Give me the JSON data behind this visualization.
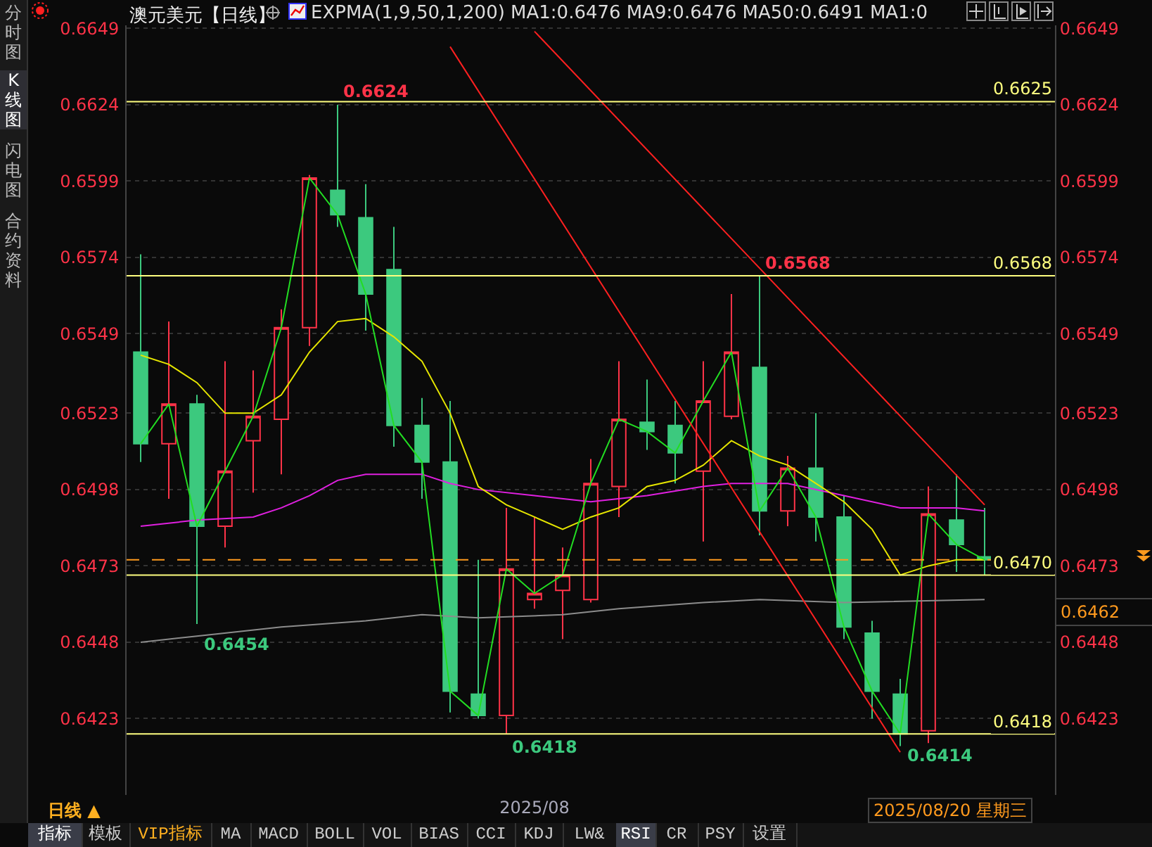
{
  "chart_data": {
    "type": "candlestick",
    "title": "澳元美元【日线】",
    "subtitle": "EXPMA(1,9,50,1,200) MA1:0.6476 MA9:0.6476 MA50:0.6491 MA1:0",
    "categories": [
      null,
      null,
      null,
      null,
      null,
      null,
      null,
      null,
      null,
      null,
      null,
      null,
      null,
      null,
      "2025/08",
      null,
      null,
      null,
      null,
      null,
      null,
      null,
      null,
      null,
      null,
      null,
      null,
      null,
      null,
      null,
      null
    ],
    "ohlc": [
      [
        0.6543,
        0.6575,
        0.6507,
        0.6513
      ],
      [
        0.6513,
        0.6553,
        0.6495,
        0.6526
      ],
      [
        0.6526,
        0.6529,
        0.6454,
        0.6486
      ],
      [
        0.6486,
        0.654,
        0.6479,
        0.6504
      ],
      [
        0.6514,
        0.6537,
        0.6497,
        0.6522
      ],
      [
        0.6521,
        0.6557,
        0.6503,
        0.6551
      ],
      [
        0.6551,
        0.6601,
        0.6545,
        0.66
      ],
      [
        0.6596,
        0.6624,
        0.6584,
        0.6588
      ],
      [
        0.6587,
        0.6598,
        0.655,
        0.6562
      ],
      [
        0.657,
        0.6584,
        0.6512,
        0.6519
      ],
      [
        0.6519,
        0.6528,
        0.6495,
        0.6507
      ],
      [
        0.6507,
        0.6527,
        0.6425,
        0.6432
      ],
      [
        0.6431,
        0.6475,
        0.6423,
        0.6424
      ],
      [
        0.6424,
        0.6492,
        0.6418,
        0.6472
      ],
      [
        0.6462,
        0.6489,
        0.6459,
        0.6464
      ],
      [
        0.6465,
        0.6479,
        0.6449,
        0.647
      ],
      [
        0.6462,
        0.6508,
        0.6461,
        0.65
      ],
      [
        0.6499,
        0.654,
        0.6489,
        0.6521
      ],
      [
        0.652,
        0.6534,
        0.6511,
        0.6517
      ],
      [
        0.6519,
        0.6527,
        0.65,
        0.651
      ],
      [
        0.6504,
        0.654,
        0.6481,
        0.6527
      ],
      [
        0.6522,
        0.6562,
        0.6521,
        0.6543
      ],
      [
        0.6538,
        0.6568,
        0.6483,
        0.6491
      ],
      [
        0.6491,
        0.6509,
        0.6486,
        0.6505
      ],
      [
        0.6505,
        0.6523,
        0.6481,
        0.6489
      ],
      [
        0.6489,
        0.6496,
        0.6449,
        0.6453
      ],
      [
        0.6451,
        0.6455,
        0.6423,
        0.6432
      ],
      [
        0.6431,
        0.6436,
        0.6414,
        0.6418
      ],
      [
        0.6419,
        0.6499,
        0.6415,
        0.649
      ],
      [
        0.6488,
        0.6503,
        0.6471,
        0.648
      ],
      [
        0.6476,
        0.6492,
        0.647,
        0.6475
      ]
    ],
    "colors": [
      "#3cc97e",
      "#ff3348",
      "#3cc97e",
      "#ff3348",
      "#ff3348",
      "#ff3348",
      "#ff3348",
      "#3cc97e",
      "#3cc97e",
      "#3cc97e",
      "#3cc97e",
      "#3cc97e",
      "#3cc97e",
      "#ff3348",
      "#ff3348",
      "#ff3348",
      "#ff3348",
      "#ff3348",
      "#3cc97e",
      "#3cc97e",
      "#ff3348",
      "#ff3348",
      "#3cc97e",
      "#ff3348",
      "#3cc97e",
      "#3cc97e",
      "#3cc97e",
      "#3cc97e",
      "#ff3348",
      "#3cc97e",
      "#3cc97e"
    ],
    "series": [
      {
        "type": "line",
        "color": "#8c8c8c",
        "values": [
          0.6448,
          null,
          0.645,
          null,
          null,
          0.6453,
          null,
          null,
          0.6455,
          null,
          0.6457,
          null,
          0.6456,
          null,
          null,
          0.6457,
          null,
          0.6459,
          null,
          null,
          0.6461,
          null,
          0.6462,
          null,
          null,
          0.6461,
          null,
          null,
          null,
          null,
          0.6462
        ]
      },
      {
        "type": "line",
        "color": "#e020e0",
        "values": [
          0.6486,
          null,
          0.6488,
          null,
          0.6489,
          0.6492,
          0.6496,
          0.6501,
          0.6503,
          0.6503,
          0.6503,
          0.65,
          0.6498,
          null,
          0.6496,
          null,
          0.6494,
          null,
          0.6496,
          null,
          0.6499,
          0.65,
          null,
          0.65,
          null,
          0.6496,
          null,
          0.6492,
          null,
          0.6492,
          0.6491
        ]
      },
      {
        "type": "line",
        "color": "#e6e600",
        "values": [
          0.6542,
          0.6539,
          0.6533,
          0.6523,
          0.6523,
          0.6529,
          0.6543,
          0.6553,
          0.6554,
          0.6548,
          0.654,
          0.6523,
          0.6499,
          0.6493,
          0.6489,
          0.6485,
          0.6489,
          0.6492,
          0.6499,
          0.6501,
          0.6506,
          0.6514,
          0.6509,
          0.6506,
          0.65,
          0.6494,
          0.6485,
          0.647,
          0.6473,
          0.6475,
          0.6475
        ]
      },
      {
        "type": "line",
        "color": "#22dd22",
        "values": [
          0.6513,
          0.6526,
          0.6486,
          0.6504,
          0.6522,
          0.6551,
          0.66,
          0.6588,
          0.6562,
          0.6519,
          0.6507,
          0.6432,
          0.6424,
          0.6472,
          0.6464,
          0.647,
          0.65,
          0.6521,
          0.6517,
          0.651,
          0.6527,
          0.6543,
          0.6491,
          0.6505,
          0.6489,
          0.6453,
          0.6432,
          0.6418,
          0.649,
          0.648,
          0.6475
        ]
      },
      {
        "type": "line",
        "color": "#ff2020",
        "values": [
          null,
          null,
          null,
          null,
          null,
          null,
          null,
          null,
          null,
          null,
          null,
          0.6643,
          null,
          null,
          null,
          null,
          null,
          null,
          null,
          null,
          null,
          null,
          null,
          null,
          null,
          null,
          null,
          0.6412,
          null,
          null,
          null
        ]
      },
      {
        "type": "line",
        "color": "#ff2020",
        "values": [
          null,
          null,
          null,
          null,
          null,
          null,
          null,
          null,
          null,
          null,
          null,
          null,
          null,
          null,
          0.6648,
          null,
          null,
          null,
          null,
          null,
          null,
          null,
          null,
          null,
          null,
          null,
          null,
          null,
          null,
          null,
          0.6493
        ]
      }
    ],
    "ref_lines": [
      {
        "axis": "y",
        "value": 0.6625,
        "label": "0.6625",
        "color": "#ffff80"
      },
      {
        "axis": "y",
        "value": 0.6568,
        "label": "0.6568",
        "color": "#ffff80"
      },
      {
        "axis": "y",
        "value": 0.647,
        "label": "0.6470",
        "color": "#ffff80"
      },
      {
        "axis": "y",
        "value": 0.6418,
        "label": "0.6418",
        "color": "#ffff80"
      },
      {
        "axis": "y",
        "value": 0.6475,
        "color": "#ff9a1e",
        "line_style": "dashed"
      }
    ],
    "annotations": [
      {
        "text": "0.6624",
        "y": 0.6624
      },
      {
        "text": "0.6568",
        "y": 0.6568
      },
      {
        "text": "0.6418",
        "y": 0.6418
      },
      "0.6454",
      "0.6414",
      "0.6462",
      "2025/08/20 星期三",
      "日线 ▲",
      "指标",
      "模板",
      "VIP指标",
      "MA",
      "MACD",
      "BOLL",
      "VOL",
      "BIAS",
      "CCI",
      "KDJ",
      "LW&",
      "RSI",
      "CR",
      "PSY",
      "设置",
      "分时图",
      "K线图",
      "闪电图",
      "合约资料"
    ],
    "ylim": [
      0.6398,
      0.665
    ],
    "yticks": [
      0.6423,
      0.6448,
      0.6473,
      0.6498,
      0.6523,
      0.6549,
      0.6574,
      0.6599,
      0.6624,
      0.6649
    ],
    "y2lim": [
      0.6398,
      0.665
    ],
    "y2ticks": [
      0.6423,
      0.6448,
      0.6473,
      0.6498,
      0.6523,
      0.6549,
      0.6574,
      0.6599,
      0.6624,
      0.6649
    ],
    "grid": "y"
  }
}
